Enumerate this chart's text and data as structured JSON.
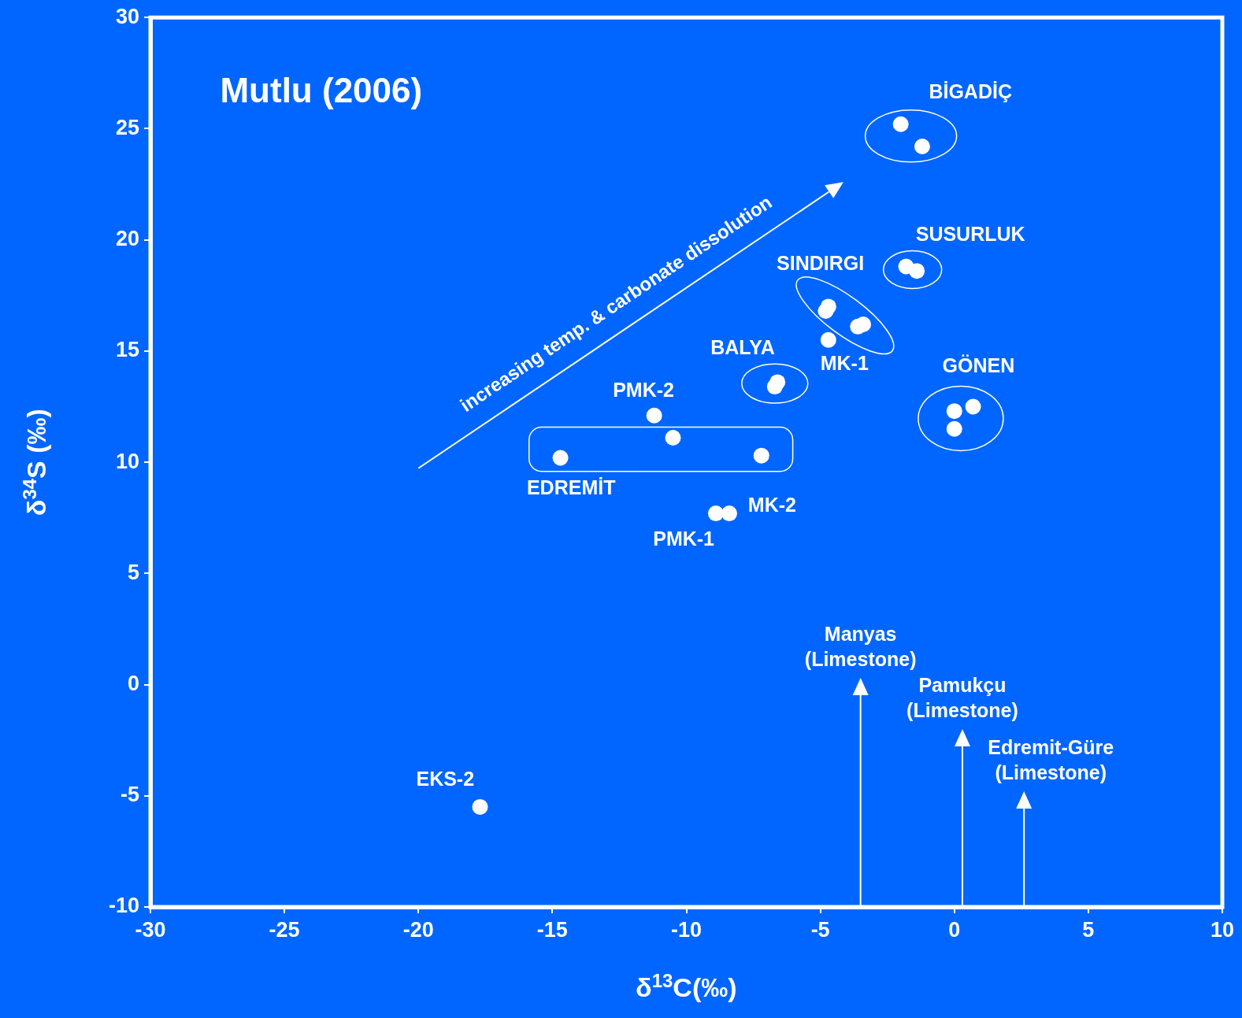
{
  "chart_data": {
    "type": "scatter",
    "title": "Mutlu (2006)",
    "xlabel": "δ$^{13}$C(‰)",
    "ylabel": "δ$^{34}$S (‰)",
    "xlim": [
      -30,
      10
    ],
    "xticks": [
      -30,
      -25,
      -20,
      -15,
      -10,
      -5,
      0,
      5,
      10
    ],
    "ylim": [
      -10,
      30
    ],
    "yticks": [
      -10,
      -5,
      0,
      5,
      10,
      15,
      20,
      25,
      30
    ],
    "grid": false,
    "legend": false,
    "marker": "circle",
    "series": [
      {
        "color": "#ffffff",
        "x": [
          -2.0,
          -1.2,
          -1.8,
          -1.4,
          -4.7,
          -4.8,
          -3.6,
          -3.4,
          -4.7,
          0.0,
          0.7,
          0.0,
          -6.7,
          -6.6,
          -11.2,
          -10.5,
          -14.7,
          -7.2,
          -8.9,
          -8.4,
          -17.7
        ],
        "values": [
          25.2,
          24.2,
          18.8,
          18.6,
          17.0,
          16.8,
          16.1,
          16.2,
          15.5,
          12.3,
          12.5,
          11.5,
          13.4,
          13.6,
          12.1,
          11.1,
          10.2,
          10.3,
          7.7,
          7.7,
          -5.5
        ]
      }
    ],
    "annotations": [
      "BİGADİÇ",
      "SUSURLUK",
      "SINDIRGI",
      "MK-1",
      "GÖNEN",
      "BALYA",
      "PMK-2",
      "EDREMİT",
      "PMK-1",
      "MK-2",
      "EKS-2",
      "Manyas\n(Limestone)",
      "Pamukçu\n(Limestone)",
      "Edremit-Güre\n(Limestone)",
      "increasing temp. & carbonate dissolution"
    ]
  }
}
